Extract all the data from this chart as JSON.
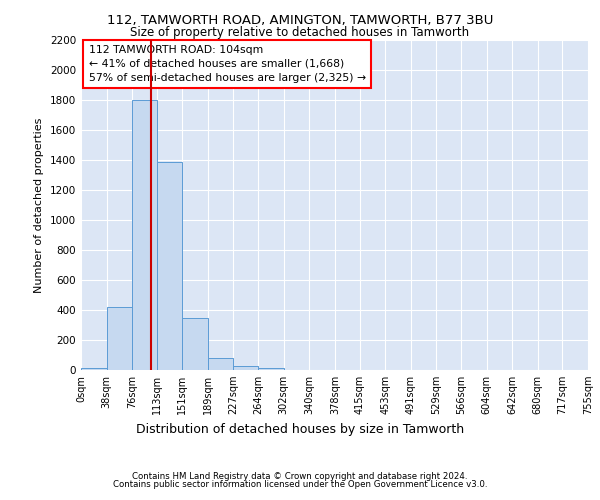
{
  "title1": "112, TAMWORTH ROAD, AMINGTON, TAMWORTH, B77 3BU",
  "title2": "Size of property relative to detached houses in Tamworth",
  "xlabel": "Distribution of detached houses by size in Tamworth",
  "ylabel": "Number of detached properties",
  "bin_labels": [
    "0sqm",
    "38sqm",
    "76sqm",
    "113sqm",
    "151sqm",
    "189sqm",
    "227sqm",
    "264sqm",
    "302sqm",
    "340sqm",
    "378sqm",
    "415sqm",
    "453sqm",
    "491sqm",
    "529sqm",
    "566sqm",
    "604sqm",
    "642sqm",
    "680sqm",
    "717sqm",
    "755sqm"
  ],
  "bar_heights": [
    15,
    420,
    1800,
    1390,
    350,
    80,
    30,
    15,
    0,
    0,
    0,
    0,
    0,
    0,
    0,
    0,
    0,
    0,
    0,
    0
  ],
  "bar_color": "#c6d9f0",
  "bar_edge_color": "#5b9bd5",
  "property_label": "112 TAMWORTH ROAD: 104sqm",
  "annotation_line1": "← 41% of detached houses are smaller (1,668)",
  "annotation_line2": "57% of semi-detached houses are larger (2,325) →",
  "vline_color": "#cc0000",
  "vline_x": 104,
  "ylim": [
    0,
    2200
  ],
  "bin_edges": [
    0,
    38,
    76,
    113,
    151,
    189,
    227,
    264,
    302,
    340,
    378,
    415,
    453,
    491,
    529,
    566,
    604,
    642,
    680,
    717,
    755
  ],
  "footer1": "Contains HM Land Registry data © Crown copyright and database right 2024.",
  "footer2": "Contains public sector information licensed under the Open Government Licence v3.0.",
  "plot_bg_color": "#dce6f5"
}
